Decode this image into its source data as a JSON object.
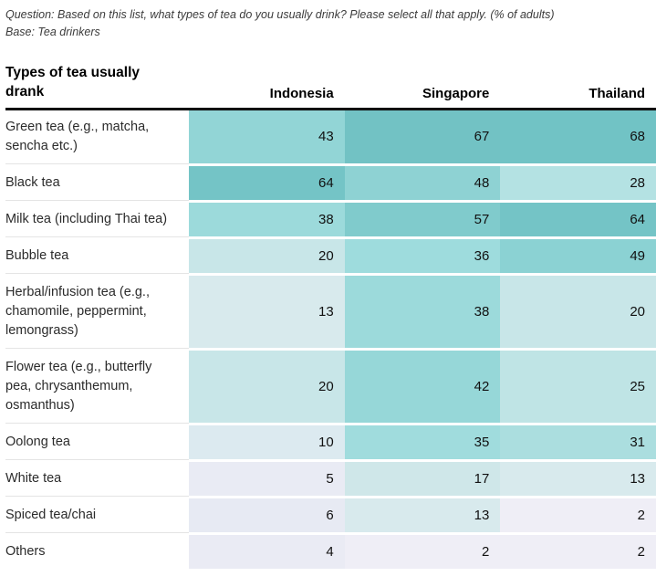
{
  "note": {
    "question": "Question: Based on this list, what types of tea do you usually drink? Please select all that apply. (% of adults)",
    "base": "Base: Tea drinkers"
  },
  "chart_data": {
    "type": "heatmap",
    "title": "Types of tea usually drank",
    "columns": [
      "Indonesia",
      "Singapore",
      "Thailand"
    ],
    "rows": [
      {
        "label": "Green tea (e.g., matcha, sencha etc.)",
        "values": [
          43,
          67,
          68
        ],
        "colors": [
          "#92d5d6",
          "#72c2c4",
          "#71c3c5"
        ]
      },
      {
        "label": "Black tea",
        "values": [
          64,
          48,
          28
        ],
        "colors": [
          "#74c4c6",
          "#8ed2d3",
          "#b4e2e3"
        ]
      },
      {
        "label": "Milk tea (including Thai tea)",
        "values": [
          38,
          57,
          64
        ],
        "colors": [
          "#9cdadb",
          "#80cbcc",
          "#74c4c6"
        ]
      },
      {
        "label": "Bubble tea",
        "values": [
          20,
          36,
          49
        ],
        "colors": [
          "#c8e6e8",
          "#9edcdd",
          "#8bd2d3"
        ]
      },
      {
        "label": "Herbal/infusion tea (e.g., chamomile, peppermint, lemongrass)",
        "values": [
          13,
          38,
          20
        ],
        "colors": [
          "#d8eaed",
          "#9cdadb",
          "#c8e6e8"
        ]
      },
      {
        "label": "Flower tea (e.g., butterfly pea, chrysanthemum, osmanthus)",
        "values": [
          20,
          42,
          25
        ],
        "colors": [
          "#c8e6e8",
          "#96d7d8",
          "#bfe4e5"
        ]
      },
      {
        "label": "Oolong tea",
        "values": [
          10,
          35,
          31
        ],
        "colors": [
          "#dceaf0",
          "#a0dcdd",
          "#abdedf"
        ]
      },
      {
        "label": "White tea",
        "values": [
          5,
          17,
          13
        ],
        "colors": [
          "#e9ebf4",
          "#cfe7e9",
          "#d8eaed"
        ]
      },
      {
        "label": "Spiced tea/chai",
        "values": [
          6,
          13,
          2
        ],
        "colors": [
          "#e7eaf3",
          "#d8eaed",
          "#efeef6"
        ]
      },
      {
        "label": "Others",
        "values": [
          4,
          2,
          2
        ],
        "colors": [
          "#eaebf4",
          "#efeef6",
          "#efeef6"
        ]
      }
    ],
    "value_unit": "% of adults",
    "legend": "none",
    "colors_meaning": "darker teal = higher percentage, pale lavender = lowest"
  }
}
